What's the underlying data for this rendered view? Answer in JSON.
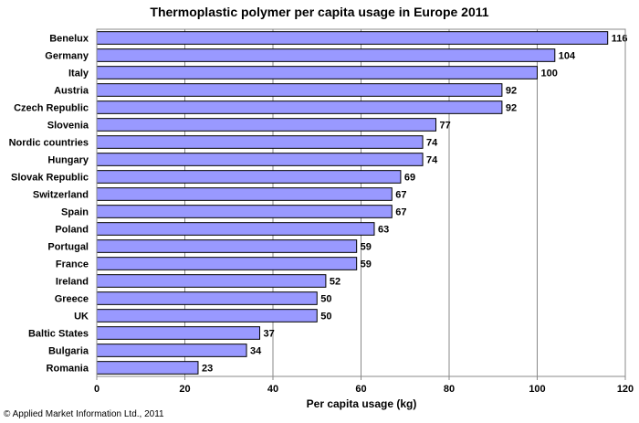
{
  "chart_data": {
    "type": "bar",
    "orientation": "horizontal",
    "title": "Thermoplastic polymer per capita usage in Europe 2011",
    "xlabel": "Per capita usage (kg)",
    "ylabel": "",
    "categories": [
      "Benelux",
      "Germany",
      "Italy",
      "Austria",
      "Czech Republic",
      "Slovenia",
      "Nordic countries",
      "Hungary",
      "Slovak Republic",
      "Switzerland",
      "Spain",
      "Poland",
      "Portugal",
      "France",
      "Ireland",
      "Greece",
      "UK",
      "Baltic States",
      "Bulgaria",
      "Romania"
    ],
    "values": [
      116,
      104,
      100,
      92,
      92,
      77,
      74,
      74,
      69,
      67,
      67,
      63,
      59,
      59,
      52,
      50,
      50,
      37,
      34,
      23
    ],
    "xlim": [
      0,
      120
    ],
    "xticks": [
      0,
      20,
      40,
      60,
      80,
      100,
      120
    ],
    "grid": "vertical",
    "bar_color": "#9999ff",
    "bar_edge_color": "#000000"
  },
  "footer": {
    "copyright": "© Applied Market Information Ltd., 2011"
  }
}
